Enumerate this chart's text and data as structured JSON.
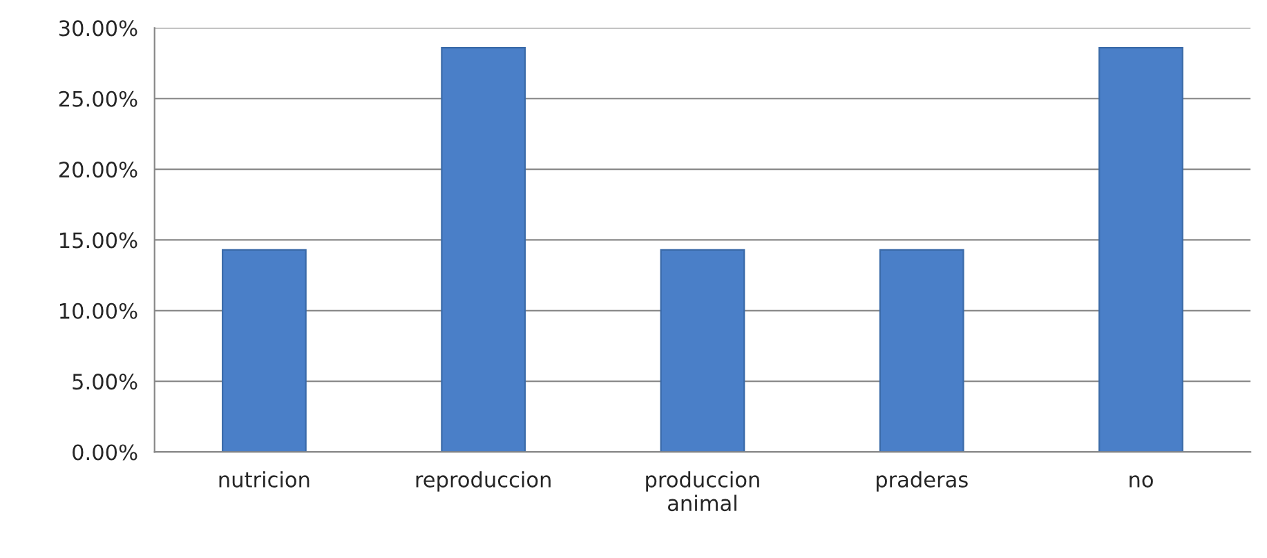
{
  "chart_data": {
    "type": "bar",
    "categories": [
      "nutricion",
      "reproduccion",
      "produccion\nanimal",
      "praderas",
      "no"
    ],
    "values": [
      14.3,
      28.6,
      14.3,
      14.3,
      28.6
    ],
    "color": "#4a7fc8",
    "ylim": [
      0,
      30
    ],
    "yticks": [
      {
        "value": 0,
        "label": "0.00%"
      },
      {
        "value": 5,
        "label": "5.00%"
      },
      {
        "value": 10,
        "label": "10.00%"
      },
      {
        "value": 15,
        "label": "15.00%"
      },
      {
        "value": 20,
        "label": "20.00%"
      },
      {
        "value": 25,
        "label": "25.00%"
      },
      {
        "value": 30,
        "label": "30.00%"
      }
    ],
    "grid": "y",
    "legend": false
  }
}
